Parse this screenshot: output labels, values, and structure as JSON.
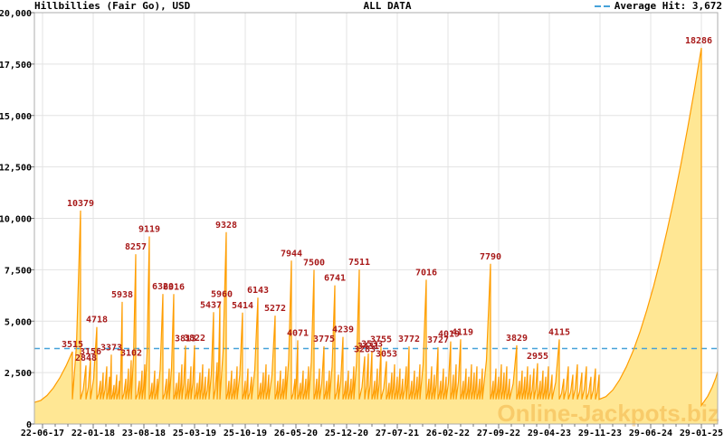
{
  "header": {
    "title": "Hillbillies (Fair Go), USD",
    "subtitle": "ALL DATA",
    "legend": {
      "label": "Average Hit: 3,672"
    }
  },
  "watermark": {
    "text": "Online-Jackpots.biz"
  },
  "colors": {
    "line": "#ff9d00",
    "fill": "#ffe794",
    "hit_label": "#a81a1a",
    "average": "#46a2d9",
    "grid": "#e3e3e3",
    "border": "#adadad",
    "tick": "#777777",
    "text": "#000000",
    "watermark": "rgba(238,164,48,0.42)"
  },
  "chart_data": {
    "type": "area",
    "title": "Hillbillies (Fair Go), USD",
    "subtitle": "ALL DATA",
    "currency": "USD",
    "average_hit": 3672,
    "ylim": [
      0,
      20000
    ],
    "y_tick_step": 2500,
    "y_tick_labels": [
      "0",
      "2,500",
      "5,000",
      "7,500",
      "10,000",
      "12,500",
      "15,000",
      "17,500",
      "20,000"
    ],
    "x_tick_labels": [
      "22-06-17",
      "22-01-18",
      "23-08-18",
      "25-03-19",
      "25-10-19",
      "26-05-20",
      "25-12-20",
      "27-07-21",
      "26-02-22",
      "27-09-22",
      "29-04-23",
      "29-11-23",
      "29-06-24",
      "29-01-25"
    ],
    "grid": true,
    "legend_position": "top-right",
    "reset_value": 1200,
    "lead": [
      38,
      1050
    ],
    "peaks": [
      [
        80,
        3515,
        1
      ],
      [
        89,
        10379,
        1
      ],
      [
        95,
        2848,
        1
      ],
      [
        100,
        3156,
        1
      ],
      [
        107,
        4718,
        1
      ],
      [
        111,
        2100,
        0
      ],
      [
        114,
        2500,
        0
      ],
      [
        118,
        2800,
        0
      ],
      [
        121,
        2300,
        0
      ],
      [
        123,
        3373,
        1
      ],
      [
        126,
        1900,
        0
      ],
      [
        129,
        2400,
        0
      ],
      [
        132,
        2100,
        0
      ],
      [
        135,
        5938,
        1
      ],
      [
        139,
        2200,
        0
      ],
      [
        142,
        2700,
        0
      ],
      [
        145,
        3102,
        1
      ],
      [
        150,
        8257,
        1
      ],
      [
        154,
        2100,
        0
      ],
      [
        157,
        2600,
        0
      ],
      [
        160,
        2900,
        0
      ],
      [
        165,
        9119,
        1
      ],
      [
        168,
        2000,
        0
      ],
      [
        171,
        2600,
        0
      ],
      [
        174,
        2200,
        0
      ],
      [
        180,
        6320,
        1
      ],
      [
        184,
        2200,
        0
      ],
      [
        187,
        2700,
        0
      ],
      [
        192,
        6316,
        1
      ],
      [
        195,
        2000,
        0
      ],
      [
        198,
        2500,
        0
      ],
      [
        201,
        2900,
        0
      ],
      [
        205,
        3813,
        1
      ],
      [
        208,
        2200,
        0
      ],
      [
        211,
        2800,
        0
      ],
      [
        215,
        3822,
        1
      ],
      [
        218,
        2000,
        0
      ],
      [
        221,
        2500,
        0
      ],
      [
        224,
        2900,
        0
      ],
      [
        227,
        2300,
        0
      ],
      [
        231,
        2700,
        0
      ],
      [
        236,
        5437,
        1,
        -3
      ],
      [
        240,
        3000,
        0
      ],
      [
        243,
        5960,
        1,
        2
      ],
      [
        250,
        9328,
        1
      ],
      [
        253,
        2100,
        0
      ],
      [
        256,
        2600,
        0
      ],
      [
        259,
        2200,
        0
      ],
      [
        262,
        2800,
        0
      ],
      [
        268,
        5414,
        1
      ],
      [
        271,
        2100,
        0
      ],
      [
        274,
        2700,
        0
      ],
      [
        278,
        2300,
        0
      ],
      [
        285,
        6143,
        1
      ],
      [
        288,
        2000,
        0
      ],
      [
        291,
        2500,
        0
      ],
      [
        294,
        2900,
        0
      ],
      [
        297,
        2400,
        0
      ],
      [
        304,
        5272,
        1
      ],
      [
        307,
        2100,
        0
      ],
      [
        310,
        2600,
        0
      ],
      [
        313,
        2200,
        0
      ],
      [
        316,
        2800,
        0
      ],
      [
        322,
        7944,
        1
      ],
      [
        326,
        2200,
        0
      ],
      [
        329,
        4071,
        1
      ],
      [
        332,
        2000,
        0
      ],
      [
        335,
        2600,
        0
      ],
      [
        338,
        2200,
        0
      ],
      [
        341,
        2800,
        0
      ],
      [
        347,
        7500,
        1
      ],
      [
        350,
        2200,
        0
      ],
      [
        353,
        2700,
        0
      ],
      [
        358,
        3775,
        1
      ],
      [
        361,
        2100,
        0
      ],
      [
        364,
        2600,
        0
      ],
      [
        370,
        6741,
        1
      ],
      [
        374,
        2400,
        0
      ],
      [
        379,
        4239,
        1
      ],
      [
        382,
        2100,
        0
      ],
      [
        385,
        2600,
        0
      ],
      [
        388,
        2200,
        0
      ],
      [
        391,
        2800,
        0
      ],
      [
        397,
        7511,
        1
      ],
      [
        403,
        3283,
        1
      ],
      [
        407,
        3431,
        1
      ],
      [
        411,
        3533,
        1
      ],
      [
        414,
        2100,
        0
      ],
      [
        417,
        2700,
        0
      ],
      [
        421,
        3755,
        1
      ],
      [
        427,
        3053,
        1
      ],
      [
        430,
        2000,
        0
      ],
      [
        433,
        2500,
        0
      ],
      [
        436,
        2900,
        0
      ],
      [
        439,
        2300,
        0
      ],
      [
        442,
        2700,
        0
      ],
      [
        445,
        2200,
        0
      ],
      [
        449,
        2800,
        0
      ],
      [
        452,
        3772,
        1
      ],
      [
        455,
        2100,
        0
      ],
      [
        458,
        2600,
        0
      ],
      [
        461,
        2300,
        0
      ],
      [
        464,
        2900,
        0
      ],
      [
        471,
        7016,
        1
      ],
      [
        474,
        2200,
        0
      ],
      [
        477,
        2800,
        0
      ],
      [
        480,
        2400,
        0
      ],
      [
        484,
        3727,
        1
      ],
      [
        487,
        2100,
        0
      ],
      [
        490,
        2700,
        0
      ],
      [
        493,
        2300,
        0
      ],
      [
        498,
        4019,
        1,
        -2
      ],
      [
        501,
        2400,
        0
      ],
      [
        504,
        2900,
        0
      ],
      [
        509,
        4119,
        1,
        2
      ],
      [
        512,
        2100,
        0
      ],
      [
        515,
        2700,
        0
      ],
      [
        518,
        2300,
        0
      ],
      [
        521,
        2900,
        0
      ],
      [
        524,
        2500,
        0
      ],
      [
        527,
        2800,
        0
      ],
      [
        530,
        2200,
        0
      ],
      [
        533,
        2700,
        0
      ],
      [
        542,
        7790,
        1
      ],
      [
        545,
        2100,
        0
      ],
      [
        548,
        2700,
        0
      ],
      [
        551,
        2300,
        0
      ],
      [
        554,
        2900,
        0
      ],
      [
        557,
        2500,
        0
      ],
      [
        560,
        2800,
        0
      ],
      [
        563,
        2200,
        0
      ],
      [
        571,
        3829,
        1
      ],
      [
        574,
        2100,
        0
      ],
      [
        577,
        2600,
        0
      ],
      [
        580,
        2300,
        0
      ],
      [
        583,
        2800,
        0
      ],
      [
        586,
        2400,
        0
      ],
      [
        590,
        2700,
        0
      ],
      [
        594,
        2955,
        1
      ],
      [
        597,
        2100,
        0
      ],
      [
        600,
        2600,
        0
      ],
      [
        603,
        2300,
        0
      ],
      [
        606,
        2800,
        0
      ],
      [
        610,
        2400,
        0
      ],
      [
        618,
        4115,
        1
      ],
      [
        623,
        2200,
        0
      ],
      [
        628,
        2800,
        0
      ],
      [
        633,
        2400,
        0
      ],
      [
        638,
        2900,
        0
      ],
      [
        643,
        2500,
        0
      ],
      [
        648,
        2800,
        0
      ],
      [
        653,
        2300,
        0
      ],
      [
        658,
        2700,
        0
      ],
      [
        662,
        2400,
        0
      ],
      [
        775,
        18286,
        1,
        -3
      ]
    ],
    "tail": [
      [
        775,
        900
      ],
      [
        782,
        1350
      ],
      [
        787,
        1800
      ],
      [
        791,
        2250
      ],
      [
        793,
        2550
      ]
    ]
  }
}
